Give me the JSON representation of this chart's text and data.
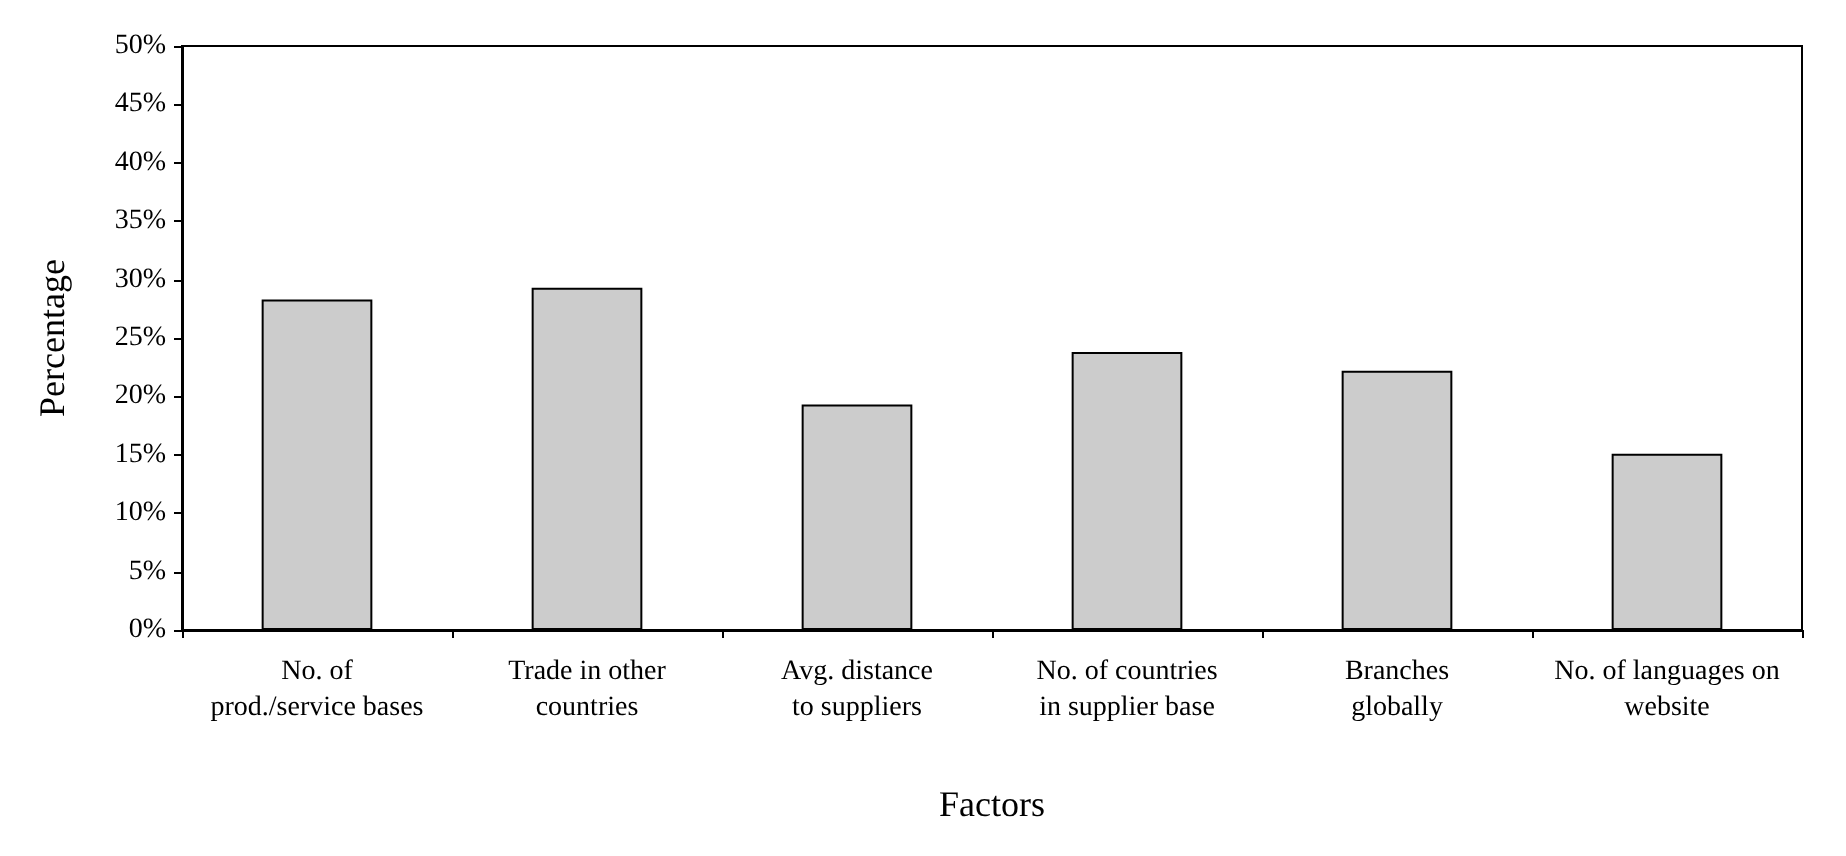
{
  "chart_data": {
    "type": "bar",
    "xlabel": "Factors",
    "ylabel": "Percentage",
    "categories": [
      "No. of\nprod./service bases",
      "Trade in other\ncountries",
      "Avg. distance\nto suppliers",
      "No. of countries\nin supplier base",
      "Branches\nglobally",
      "No. of languages on\nwebsite"
    ],
    "values": [
      28.3,
      29.3,
      19.3,
      23.8,
      22.2,
      15.1
    ],
    "color": "#cccccc",
    "ylim": [
      0,
      50
    ],
    "yticks": [
      {
        "value": 0,
        "label": "0%"
      },
      {
        "value": 5,
        "label": "5%"
      },
      {
        "value": 10,
        "label": "10%"
      },
      {
        "value": 15,
        "label": "15%"
      },
      {
        "value": 20,
        "label": "20%"
      },
      {
        "value": 25,
        "label": "25%"
      },
      {
        "value": 30,
        "label": "30%"
      },
      {
        "value": 35,
        "label": "35%"
      },
      {
        "value": 40,
        "label": "40%"
      },
      {
        "value": 45,
        "label": "45%"
      },
      {
        "value": 50,
        "label": "50%"
      }
    ],
    "grid": false
  }
}
